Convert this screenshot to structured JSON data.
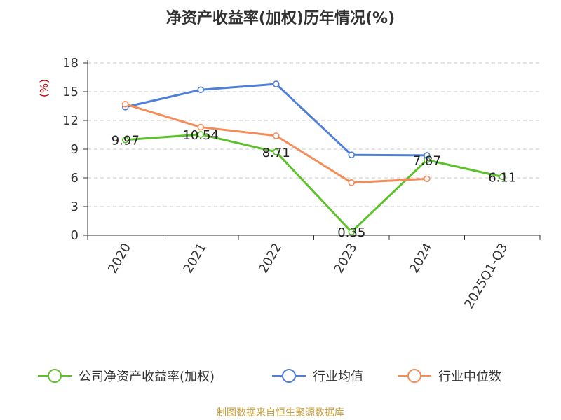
{
  "chart_data": {
    "type": "line",
    "title": "净资产收益率(加权)历年情况(%)",
    "ylabel": "(%)",
    "ylabel_color": "#cc0000",
    "categories": [
      "2020",
      "2021",
      "2022",
      "2023",
      "2024",
      "2025Q1-Q3"
    ],
    "y_ticks": [
      "0",
      "3",
      "6",
      "9",
      "12",
      "15",
      "18"
    ],
    "ylim": [
      0,
      18
    ],
    "grid": true,
    "legend_position": "bottom",
    "series": [
      {
        "name": "公司净资产收益率(加权)",
        "color": "#5cc12a",
        "values": [
          9.97,
          10.54,
          8.71,
          0.35,
          7.87,
          6.11
        ],
        "labels": [
          "9.97",
          "10.54",
          "8.71",
          "0.35",
          "7.87",
          "6.11"
        ]
      },
      {
        "name": "行业均值",
        "color": "#4f7fd8",
        "values": [
          13.4,
          15.2,
          15.8,
          8.4,
          8.35,
          null
        ]
      },
      {
        "name": "行业中位数",
        "color": "#f48c5a",
        "values": [
          13.7,
          11.3,
          10.4,
          5.5,
          5.9,
          null
        ]
      }
    ]
  },
  "source": {
    "text": "制图数据来自恒生聚源数据库",
    "color": "#c8a03c"
  }
}
